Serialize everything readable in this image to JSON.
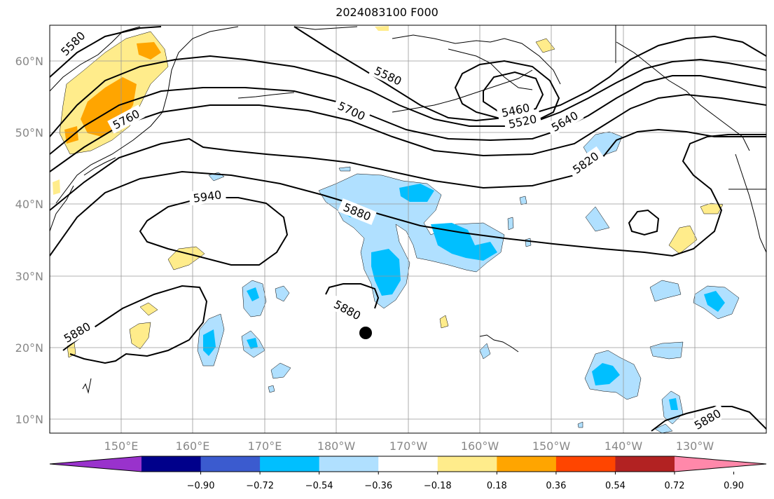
{
  "title": "2024083100 F000",
  "lat_labels": [
    "60°N",
    "50°N",
    "40°N",
    "30°N",
    "20°N",
    "10°N"
  ],
  "lon_labels": [
    "150°E",
    "160°E",
    "170°E",
    "180°W",
    "170°W",
    "160°W",
    "150°W",
    "140°W",
    "130°W"
  ],
  "contour_labels": [
    "5580",
    "5760",
    "5580",
    "5700",
    "5460",
    "5520",
    "5640",
    "5820",
    "5940",
    "5880",
    "5880",
    "5880",
    "5880"
  ],
  "colorbar": {
    "colors": [
      "#9932cc",
      "#00008b",
      "#3b5bcf",
      "#00bfff",
      "#b0e0ff",
      "#ffffff",
      "#ffec8b",
      "#ffa500",
      "#ff4500",
      "#b22222",
      "#ff88aa"
    ],
    "tick_labels": [
      "−0.90",
      "−0.72",
      "−0.54",
      "−0.36",
      "−0.18",
      "0.18",
      "0.36",
      "0.54",
      "0.72",
      "0.90"
    ]
  },
  "marker": "storm-center-dot"
}
